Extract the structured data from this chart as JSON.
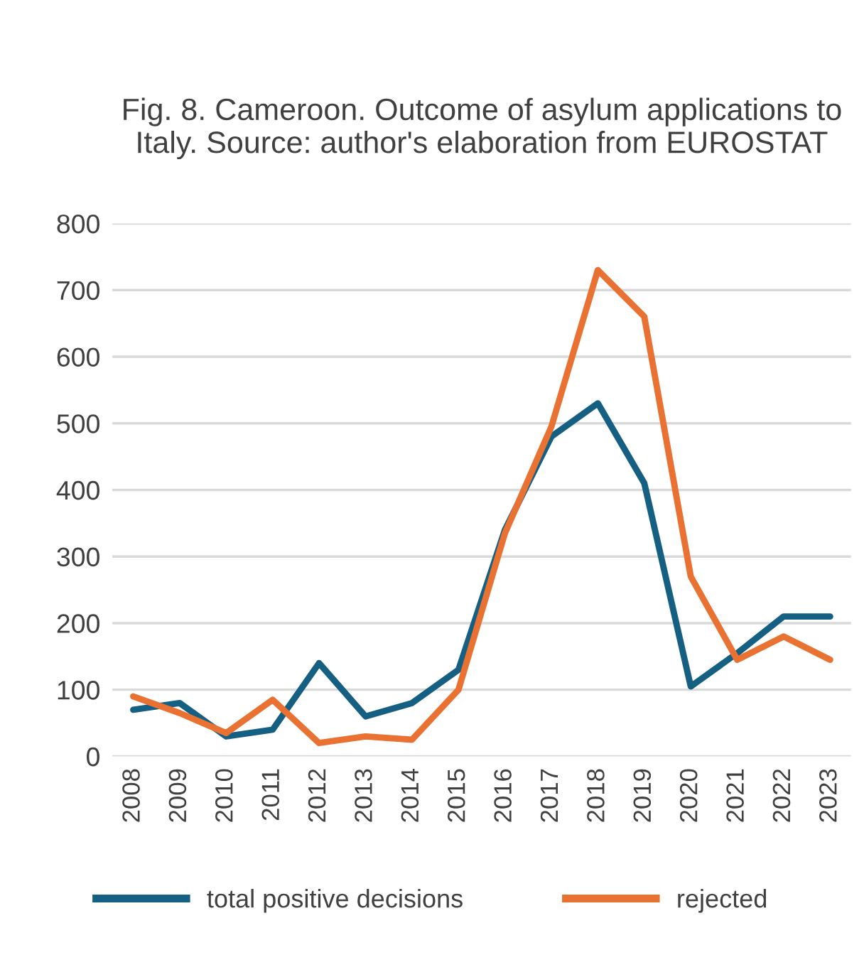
{
  "chart_data": {
    "type": "line",
    "title": "Fig. 8. Cameroon. Outcome of asylum applications to Italy. Source: author's elaboration from EUROSTAT",
    "categories": [
      "2008",
      "2009",
      "2010",
      "2011",
      "2012",
      "2013",
      "2014",
      "2015",
      "2016",
      "2017",
      "2018",
      "2019",
      "2020",
      "2021",
      "2022",
      "2023"
    ],
    "series": [
      {
        "name": "total positive decisions",
        "color": "#156082",
        "values": [
          70,
          80,
          30,
          40,
          140,
          60,
          80,
          130,
          340,
          480,
          530,
          410,
          105,
          155,
          210,
          210
        ]
      },
      {
        "name": "rejected",
        "color": "#e97132",
        "values": [
          90,
          65,
          35,
          85,
          20,
          30,
          25,
          100,
          335,
          495,
          730,
          660,
          270,
          145,
          180,
          145
        ]
      }
    ],
    "ylim": [
      0,
      800
    ],
    "yticks": [
      0,
      100,
      200,
      300,
      400,
      500,
      600,
      700,
      800
    ],
    "grid": "y",
    "legend": "bottom",
    "marker": "none",
    "line_style": "solid"
  }
}
